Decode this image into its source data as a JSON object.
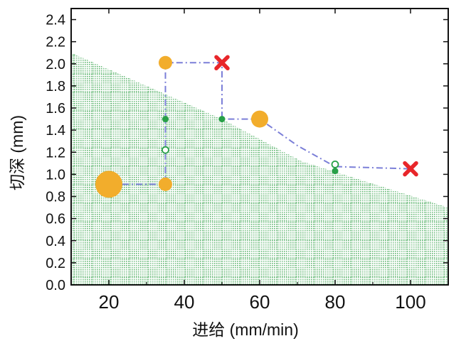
{
  "chart_data": {
    "type": "scatter",
    "xlabel": "进给 (mm/min)",
    "ylabel": "切深 (mm)",
    "xlim": [
      10,
      110
    ],
    "ylim": [
      0,
      2.5
    ],
    "x_ticks": [
      "20",
      "40",
      "60",
      "80",
      "100"
    ],
    "y_ticks": [
      "0.0",
      "0.2",
      "0.4",
      "0.6",
      "0.8",
      "1.0",
      "1.2",
      "1.4",
      "1.6",
      "1.8",
      "2.0",
      "2.2",
      "2.4"
    ],
    "x_tick_values": [
      20,
      40,
      60,
      80,
      100
    ],
    "y_tick_values": [
      0,
      0.2,
      0.4,
      0.6,
      0.8,
      1.0,
      1.2,
      1.4,
      1.6,
      1.8,
      2.0,
      2.2,
      2.4
    ],
    "stable_region": {
      "boundary": [
        [
          10,
          2.1
        ],
        [
          50,
          1.5
        ],
        [
          71,
          1.12
        ],
        [
          110,
          0.7
        ]
      ],
      "color": "#2e9e44"
    },
    "path": {
      "points": [
        [
          20,
          0.91
        ],
        [
          35,
          0.91
        ],
        [
          35,
          2.01
        ],
        [
          50,
          2.01
        ],
        [
          50,
          1.5
        ],
        [
          60,
          1.5
        ],
        [
          70,
          1.26
        ],
        [
          80,
          1.07
        ],
        [
          100,
          1.05
        ]
      ],
      "color": "#7b7fd8",
      "style": "dash-dot"
    },
    "orange_points": [
      {
        "x": 20,
        "y": 0.91,
        "size": "large"
      },
      {
        "x": 35,
        "y": 0.91,
        "size": "small"
      },
      {
        "x": 35,
        "y": 2.01,
        "size": "small"
      },
      {
        "x": 60,
        "y": 1.5,
        "size": "medium"
      }
    ],
    "red_crosses": [
      {
        "x": 50,
        "y": 2.01
      },
      {
        "x": 100,
        "y": 1.05
      }
    ],
    "green_filled_points": [
      {
        "x": 35,
        "y": 1.5
      },
      {
        "x": 50,
        "y": 1.5
      },
      {
        "x": 80,
        "y": 1.03
      }
    ],
    "green_open_points": [
      {
        "x": 35,
        "y": 1.22
      },
      {
        "x": 80,
        "y": 1.09
      }
    ],
    "colors": {
      "orange": "#f2ad2c",
      "red": "#e8262a",
      "green": "#27a047",
      "axis": "#111111"
    },
    "grid": false,
    "legend": "none"
  }
}
